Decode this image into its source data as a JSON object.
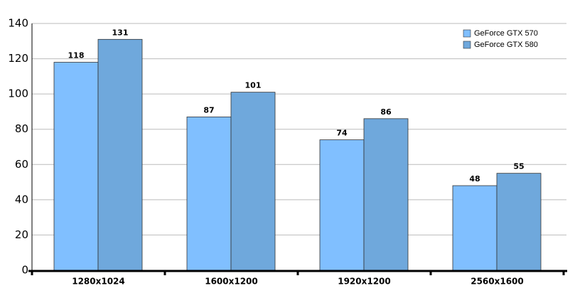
{
  "chart_data": {
    "type": "bar",
    "categories": [
      "1280x1024",
      "1600x1200",
      "1920x1200",
      "2560x1600"
    ],
    "series": [
      {
        "name": "GeForce GTX 570",
        "color": "#80bfff",
        "values": [
          118,
          87,
          74,
          48
        ]
      },
      {
        "name": "GeForce GTX 580",
        "color": "#6fa8dc",
        "values": [
          131,
          101,
          86,
          55
        ]
      }
    ],
    "ylim": [
      0,
      140
    ],
    "yticks": [
      0,
      20,
      40,
      60,
      80,
      100,
      120,
      140
    ],
    "grid": true,
    "legend": "top-right"
  }
}
